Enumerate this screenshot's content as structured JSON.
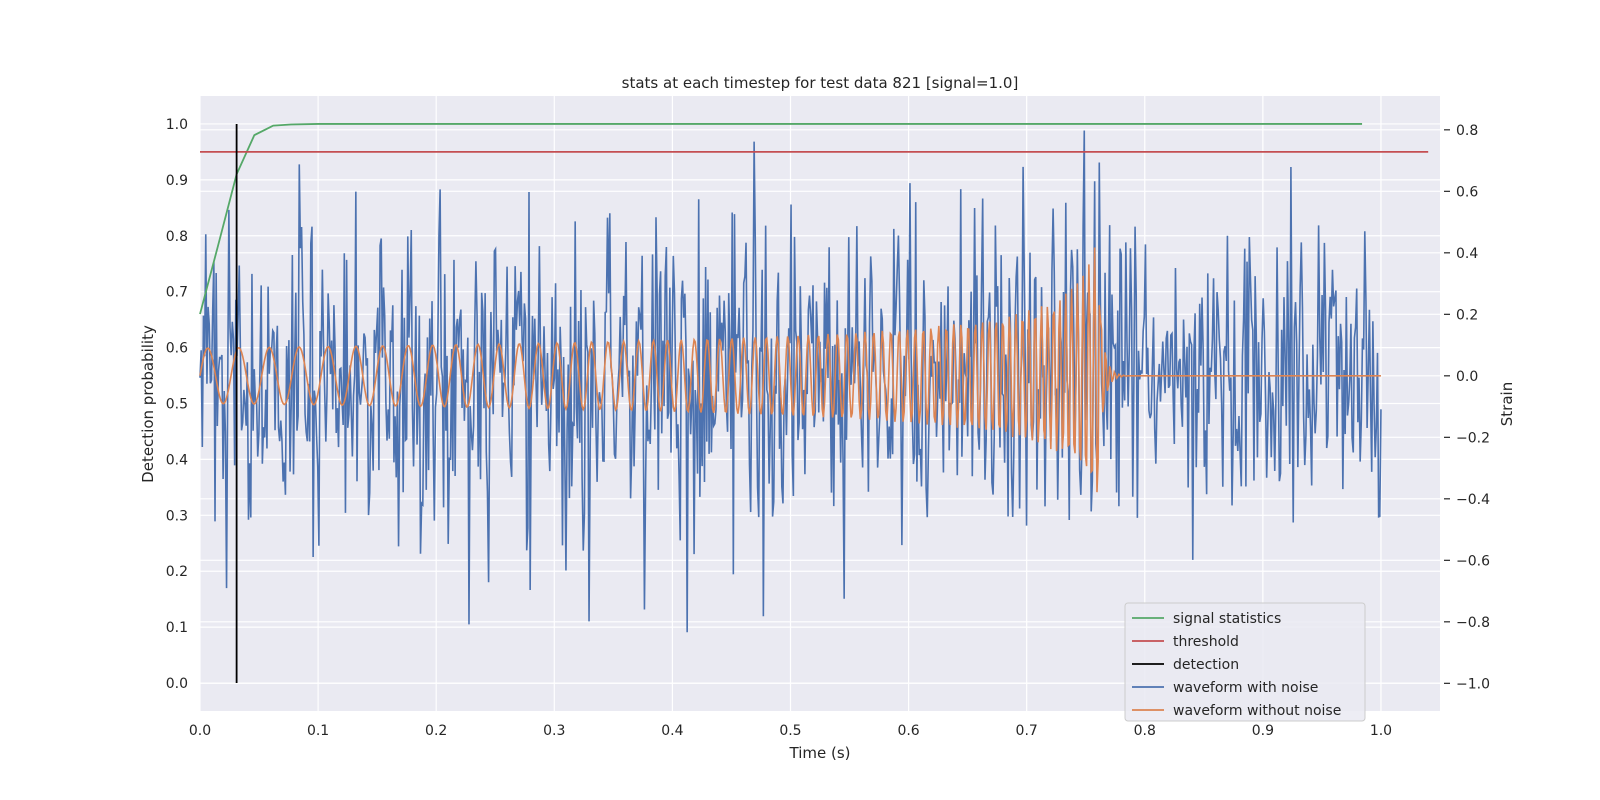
{
  "chart_data": {
    "type": "line",
    "title": "stats at each timestep for test data 821 [signal=1.0]",
    "xlabel": "Time (s)",
    "ylabel": "Detection probability",
    "y2label": "Strain",
    "xlim": [
      0.0,
      1.05
    ],
    "ylim": [
      -0.05,
      1.05
    ],
    "y2lim": [
      -1.09,
      0.91
    ],
    "xticks": [
      "0.0",
      "0.1",
      "0.2",
      "0.3",
      "0.4",
      "0.5",
      "0.6",
      "0.7",
      "0.8",
      "0.9",
      "1.0"
    ],
    "yticks": [
      "0.0",
      "0.1",
      "0.2",
      "0.3",
      "0.4",
      "0.5",
      "0.6",
      "0.7",
      "0.8",
      "0.9",
      "1.0"
    ],
    "y2ticks": [
      "−1.0",
      "−0.8",
      "−0.6",
      "−0.4",
      "−0.2",
      "0.0",
      "0.2",
      "0.4",
      "0.6",
      "0.8"
    ],
    "grid": true,
    "legend_position": "lower-right",
    "colors": {
      "background": "#eaeaf2",
      "grid": "#ffffff",
      "signal_statistics": "#55a868",
      "threshold": "#c44e52",
      "detection": "#000000",
      "waveform_with_noise": "#4c72b0",
      "waveform_without_noise": "#dd8452"
    },
    "series": [
      {
        "name": "signal statistics",
        "axis": "left",
        "x": [
          0.0,
          0.015,
          0.031,
          0.046,
          0.062,
          0.077,
          0.1,
          0.2,
          0.4,
          0.6,
          0.8,
          0.984
        ],
        "y": [
          0.66,
          0.78,
          0.91,
          0.98,
          0.997,
          0.999,
          1.0,
          1.0,
          1.0,
          1.0,
          1.0,
          1.0
        ]
      },
      {
        "name": "threshold",
        "axis": "left",
        "x": [
          0.0,
          1.04
        ],
        "y": [
          0.95,
          0.95
        ]
      },
      {
        "name": "detection",
        "axis": "left",
        "x": [
          0.031,
          0.031
        ],
        "y": [
          0.0,
          1.0
        ]
      },
      {
        "name": "waveform with noise",
        "axis": "right",
        "description": "noisy strain time series, 0 to 1 s, amplitude roughly -1.0 to 0.8"
      },
      {
        "name": "waveform without noise",
        "axis": "right",
        "description": "chirp: amplitude ~0.09 at t=0 growing to ~0.4 near t=0.76, then ringdown to 0 by t=0.78 and flat to t=1.0"
      }
    ]
  }
}
